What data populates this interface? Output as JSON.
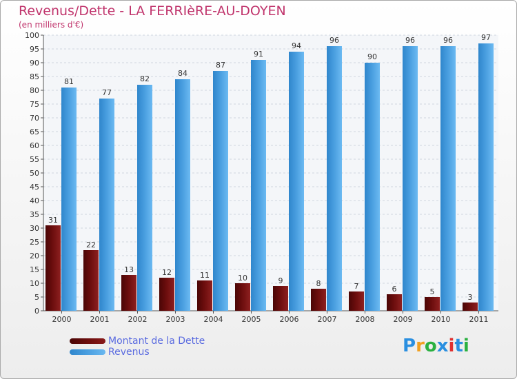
{
  "title": "Revenus/Dette - LA FERRIèRE-AU-DOYEN",
  "subtitle": "(en milliers d'€)",
  "colors": {
    "title": "#c0346c",
    "dette": "#6b0d0d",
    "revenus": "#4a9fe0",
    "legend_text": "#5a6be0",
    "grid": "#cfd6e0",
    "axis_text": "#333333"
  },
  "legend": {
    "dette_label": "Montant de la Dette",
    "revenus_label": "Revenus"
  },
  "logo": {
    "letters": [
      "P",
      "r",
      "o",
      "x",
      "i",
      "t",
      "i"
    ],
    "colors": [
      "#2a8fe0",
      "#f0a020",
      "#2ab040",
      "#2a8fe0",
      "#e03030",
      "#2a8fe0",
      "#2ab040"
    ]
  },
  "chart_data": {
    "type": "bar",
    "title": "Revenus/Dette - LA FERRIèRE-AU-DOYEN",
    "ylabel": "(en milliers d'€)",
    "xlabel": "",
    "ylim": [
      0,
      100
    ],
    "ytick_step": 5,
    "grid": true,
    "legend_position": "bottom-left",
    "categories": [
      "2000",
      "2001",
      "2002",
      "2003",
      "2004",
      "2005",
      "2006",
      "2007",
      "2008",
      "2009",
      "2010",
      "2011"
    ],
    "series": [
      {
        "name": "Montant de la Dette",
        "values": [
          31,
          22,
          13,
          12,
          11,
          10,
          9,
          8,
          7,
          6,
          5,
          3
        ]
      },
      {
        "name": "Revenus",
        "values": [
          81,
          77,
          82,
          84,
          87,
          91,
          94,
          96,
          90,
          96,
          96,
          97
        ]
      }
    ]
  }
}
